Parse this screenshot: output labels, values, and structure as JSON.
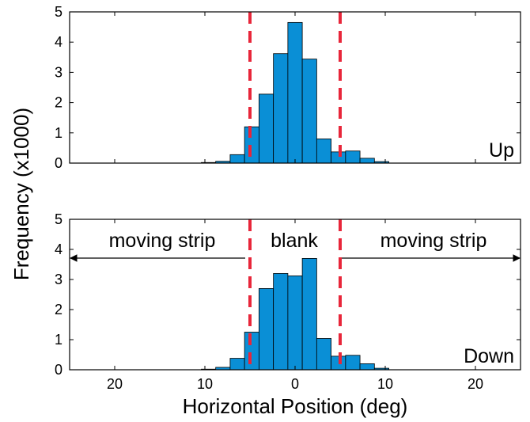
{
  "chart_data": [
    {
      "type": "bar",
      "panel_label": "Up",
      "x_direction": "reversed",
      "xlim": [
        25,
        -25
      ],
      "ylim": [
        0,
        5
      ],
      "yticks": [
        "0",
        "1",
        "2",
        "3",
        "4",
        "5"
      ],
      "bar_width": 1.6,
      "bar_color": "#0a8fd6",
      "x": [
        9.6,
        8.0,
        6.4,
        4.8,
        3.2,
        1.6,
        0.0,
        -1.6,
        -3.2,
        -4.8,
        -6.4,
        -8.0,
        -9.6
      ],
      "values": [
        0.02,
        0.06,
        0.28,
        1.2,
        2.28,
        3.62,
        4.65,
        3.44,
        0.8,
        0.37,
        0.4,
        0.16,
        0.05
      ],
      "reference_lines": [
        5,
        -5
      ],
      "reference_line_color": "#e8263a"
    },
    {
      "type": "bar",
      "panel_label": "Down",
      "x_direction": "reversed",
      "xlim": [
        25,
        -25
      ],
      "ylim": [
        0,
        5
      ],
      "yticks": [
        "0",
        "1",
        "2",
        "3",
        "4",
        "5"
      ],
      "xticks": [
        "20",
        "10",
        "0",
        "10",
        "20"
      ],
      "xtick_values": [
        20,
        10,
        0,
        -10,
        -20
      ],
      "bar_width": 1.6,
      "bar_color": "#0a8fd6",
      "x": [
        9.6,
        8.0,
        6.4,
        4.8,
        3.2,
        1.6,
        0.0,
        -1.6,
        -3.2,
        -4.8,
        -6.4,
        -8.0,
        -9.6
      ],
      "values": [
        0.02,
        0.08,
        0.38,
        1.25,
        2.7,
        3.2,
        3.12,
        3.7,
        1.04,
        0.45,
        0.48,
        0.2,
        0.05
      ],
      "reference_lines": [
        5,
        -5
      ],
      "reference_line_color": "#e8263a",
      "annotations": [
        {
          "text": "moving strip",
          "arrow_from": 5,
          "arrow_to": 25
        },
        {
          "text": "blank"
        },
        {
          "text": "moving strip",
          "arrow_from": -5,
          "arrow_to": -25
        }
      ]
    }
  ],
  "ylabel": "Frequency (x1000)",
  "xlabel": "Horizontal Position (deg)"
}
